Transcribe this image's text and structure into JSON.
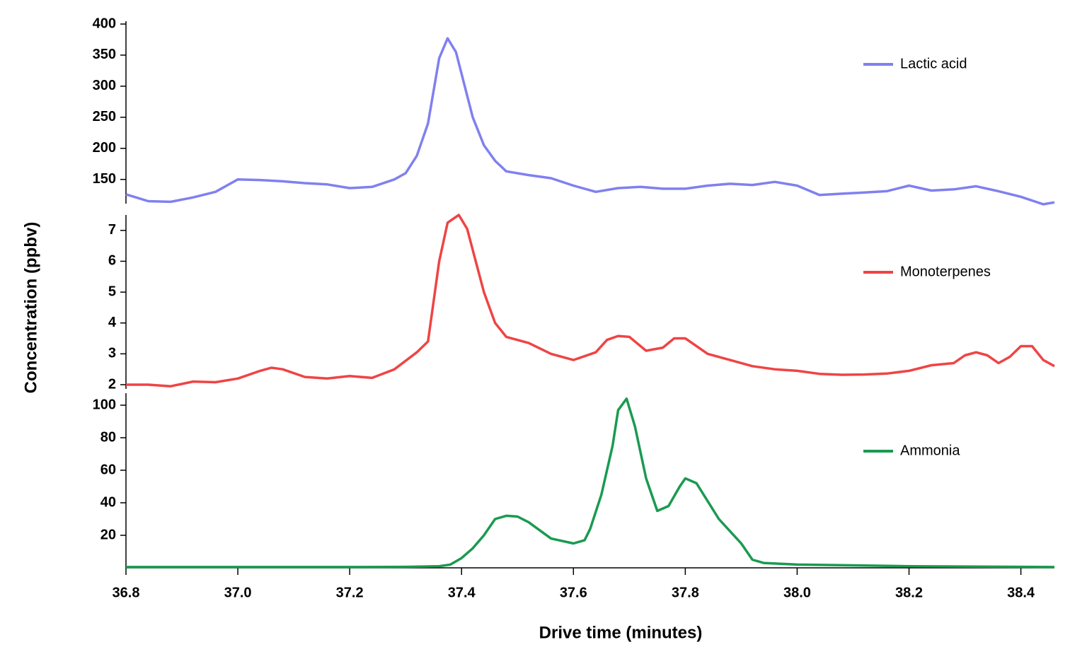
{
  "chart_data": [
    {
      "type": "line",
      "x": [
        36.8,
        36.84,
        36.88,
        36.92,
        36.96,
        37.0,
        37.04,
        37.08,
        37.12,
        37.16,
        37.2,
        37.24,
        37.28,
        37.3,
        37.32,
        37.34,
        37.36,
        37.375,
        37.39,
        37.42,
        37.44,
        37.46,
        37.48,
        37.52,
        37.56,
        37.6,
        37.64,
        37.68,
        37.72,
        37.76,
        37.8,
        37.84,
        37.88,
        37.92,
        37.96,
        38.0,
        38.04,
        38.08,
        38.12,
        38.16,
        38.2,
        38.24,
        38.28,
        38.32,
        38.36,
        38.4,
        38.44,
        38.46
      ],
      "series": [
        {
          "name": "Lactic acid",
          "color": "#8080f0",
          "values": [
            126,
            115,
            114,
            121,
            130,
            150,
            149,
            147,
            144,
            142,
            136,
            138,
            150,
            160,
            188,
            240,
            345,
            377,
            355,
            250,
            205,
            180,
            163,
            157,
            152,
            140,
            130,
            136,
            138,
            135,
            135,
            140,
            143,
            141,
            146,
            140,
            125,
            127,
            129,
            131,
            140,
            132,
            134,
            139,
            131,
            122,
            110,
            113
          ]
        }
      ],
      "xlim": [
        36.8,
        38.46
      ],
      "ylim": [
        111,
        400
      ],
      "yticks": [
        150,
        200,
        250,
        300,
        350,
        400
      ]
    },
    {
      "type": "line",
      "ylabel": "Concentration (ppbv)",
      "x": [
        36.8,
        36.84,
        36.88,
        36.92,
        36.96,
        37.0,
        37.04,
        37.06,
        37.08,
        37.12,
        37.16,
        37.2,
        37.24,
        37.28,
        37.32,
        37.34,
        37.36,
        37.375,
        37.395,
        37.41,
        37.44,
        37.46,
        37.48,
        37.52,
        37.56,
        37.6,
        37.64,
        37.66,
        37.68,
        37.7,
        37.73,
        37.76,
        37.78,
        37.8,
        37.84,
        37.88,
        37.92,
        37.96,
        38.0,
        38.04,
        38.08,
        38.12,
        38.16,
        38.2,
        38.24,
        38.28,
        38.3,
        38.32,
        38.34,
        38.36,
        38.38,
        38.4,
        38.42,
        38.44,
        38.46
      ],
      "series": [
        {
          "name": "Monoterpenes",
          "color": "#ef4444",
          "values": [
            2.0,
            2.0,
            1.95,
            2.1,
            2.08,
            2.2,
            2.45,
            2.55,
            2.5,
            2.25,
            2.2,
            2.28,
            2.22,
            2.5,
            3.05,
            3.4,
            6.0,
            7.25,
            7.5,
            7.05,
            5.0,
            4.0,
            3.55,
            3.35,
            3.0,
            2.8,
            3.05,
            3.45,
            3.58,
            3.55,
            3.1,
            3.2,
            3.5,
            3.5,
            3.0,
            2.8,
            2.6,
            2.5,
            2.45,
            2.35,
            2.32,
            2.33,
            2.36,
            2.45,
            2.63,
            2.7,
            2.95,
            3.05,
            2.95,
            2.7,
            2.9,
            3.25,
            3.25,
            2.8,
            2.6
          ]
        }
      ],
      "xlim": [
        36.8,
        38.46
      ],
      "ylim": [
        2,
        7.5
      ],
      "yticks": [
        2,
        3,
        4,
        5,
        6,
        7
      ]
    },
    {
      "type": "line",
      "xlabel": "Drive time (minutes)",
      "x": [
        36.8,
        37.0,
        37.2,
        37.3,
        37.36,
        37.38,
        37.4,
        37.42,
        37.44,
        37.46,
        37.48,
        37.5,
        37.52,
        37.56,
        37.6,
        37.62,
        37.63,
        37.65,
        37.67,
        37.68,
        37.695,
        37.71,
        37.73,
        37.75,
        37.77,
        37.79,
        37.8,
        37.82,
        37.86,
        37.9,
        37.92,
        37.94,
        38.0,
        38.1,
        38.2,
        38.46
      ],
      "series": [
        {
          "name": "Ammonia",
          "color": "#1a9a50",
          "values": [
            0.5,
            0.5,
            0.5,
            0.6,
            1,
            2,
            6,
            12,
            20,
            30,
            32,
            31.5,
            28,
            18,
            15,
            17,
            24,
            45,
            75,
            97,
            104,
            87,
            55,
            35,
            38,
            50,
            55,
            52,
            30,
            15,
            5,
            3,
            2,
            1.5,
            1,
            0.5
          ]
        }
      ],
      "xlim": [
        36.8,
        38.46
      ],
      "ylim": [
        0,
        105
      ],
      "yticks": [
        20,
        40,
        60,
        80,
        100
      ],
      "xticks": [
        36.8,
        {
          "value": 37,
          "label": "37.0"
        },
        37.2,
        37.4,
        37.6,
        37.8,
        {
          "value": 38,
          "label": "38.0"
        },
        38.2,
        38.4
      ]
    }
  ]
}
